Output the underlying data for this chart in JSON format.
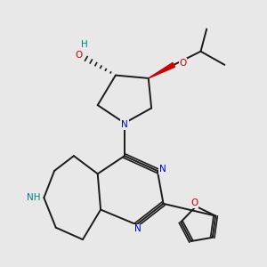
{
  "bg_color": "#e8e8e8",
  "atom_colors": {
    "N": "#0000cd",
    "O": "#cc0000",
    "NH": "#008080",
    "C": "#1a1a1a"
  },
  "figsize": [
    3.0,
    3.0
  ],
  "dpi": 100
}
